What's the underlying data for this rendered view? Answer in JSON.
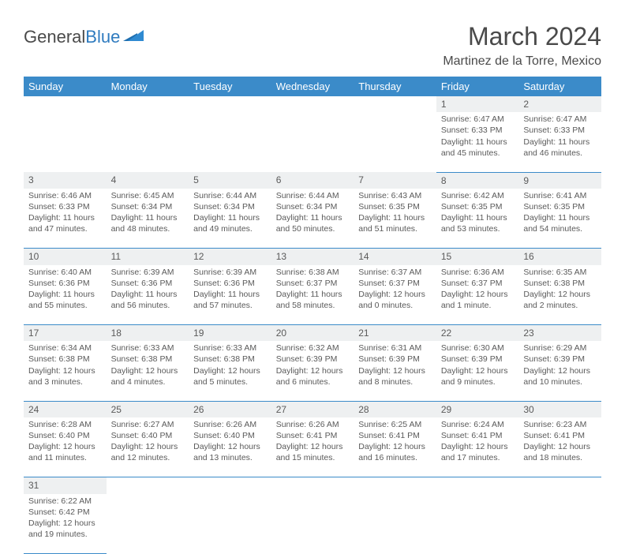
{
  "logo": {
    "part1": "General",
    "part2": "Blue"
  },
  "title": "March 2024",
  "location": "Martinez de la Torre, Mexico",
  "day_headers": [
    "Sunday",
    "Monday",
    "Tuesday",
    "Wednesday",
    "Thursday",
    "Friday",
    "Saturday"
  ],
  "colors": {
    "header_bg": "#3b8bc9",
    "header_fg": "#ffffff",
    "daynum_bg": "#eef0f1",
    "rule": "#3b8bc9",
    "logo_accent": "#2f7bbf"
  },
  "weeks": [
    [
      null,
      null,
      null,
      null,
      null,
      {
        "n": "1",
        "sr": "Sunrise: 6:47 AM",
        "ss": "Sunset: 6:33 PM",
        "dl": "Daylight: 11 hours and 45 minutes."
      },
      {
        "n": "2",
        "sr": "Sunrise: 6:47 AM",
        "ss": "Sunset: 6:33 PM",
        "dl": "Daylight: 11 hours and 46 minutes."
      }
    ],
    [
      {
        "n": "3",
        "sr": "Sunrise: 6:46 AM",
        "ss": "Sunset: 6:33 PM",
        "dl": "Daylight: 11 hours and 47 minutes."
      },
      {
        "n": "4",
        "sr": "Sunrise: 6:45 AM",
        "ss": "Sunset: 6:34 PM",
        "dl": "Daylight: 11 hours and 48 minutes."
      },
      {
        "n": "5",
        "sr": "Sunrise: 6:44 AM",
        "ss": "Sunset: 6:34 PM",
        "dl": "Daylight: 11 hours and 49 minutes."
      },
      {
        "n": "6",
        "sr": "Sunrise: 6:44 AM",
        "ss": "Sunset: 6:34 PM",
        "dl": "Daylight: 11 hours and 50 minutes."
      },
      {
        "n": "7",
        "sr": "Sunrise: 6:43 AM",
        "ss": "Sunset: 6:35 PM",
        "dl": "Daylight: 11 hours and 51 minutes."
      },
      {
        "n": "8",
        "sr": "Sunrise: 6:42 AM",
        "ss": "Sunset: 6:35 PM",
        "dl": "Daylight: 11 hours and 53 minutes."
      },
      {
        "n": "9",
        "sr": "Sunrise: 6:41 AM",
        "ss": "Sunset: 6:35 PM",
        "dl": "Daylight: 11 hours and 54 minutes."
      }
    ],
    [
      {
        "n": "10",
        "sr": "Sunrise: 6:40 AM",
        "ss": "Sunset: 6:36 PM",
        "dl": "Daylight: 11 hours and 55 minutes."
      },
      {
        "n": "11",
        "sr": "Sunrise: 6:39 AM",
        "ss": "Sunset: 6:36 PM",
        "dl": "Daylight: 11 hours and 56 minutes."
      },
      {
        "n": "12",
        "sr": "Sunrise: 6:39 AM",
        "ss": "Sunset: 6:36 PM",
        "dl": "Daylight: 11 hours and 57 minutes."
      },
      {
        "n": "13",
        "sr": "Sunrise: 6:38 AM",
        "ss": "Sunset: 6:37 PM",
        "dl": "Daylight: 11 hours and 58 minutes."
      },
      {
        "n": "14",
        "sr": "Sunrise: 6:37 AM",
        "ss": "Sunset: 6:37 PM",
        "dl": "Daylight: 12 hours and 0 minutes."
      },
      {
        "n": "15",
        "sr": "Sunrise: 6:36 AM",
        "ss": "Sunset: 6:37 PM",
        "dl": "Daylight: 12 hours and 1 minute."
      },
      {
        "n": "16",
        "sr": "Sunrise: 6:35 AM",
        "ss": "Sunset: 6:38 PM",
        "dl": "Daylight: 12 hours and 2 minutes."
      }
    ],
    [
      {
        "n": "17",
        "sr": "Sunrise: 6:34 AM",
        "ss": "Sunset: 6:38 PM",
        "dl": "Daylight: 12 hours and 3 minutes."
      },
      {
        "n": "18",
        "sr": "Sunrise: 6:33 AM",
        "ss": "Sunset: 6:38 PM",
        "dl": "Daylight: 12 hours and 4 minutes."
      },
      {
        "n": "19",
        "sr": "Sunrise: 6:33 AM",
        "ss": "Sunset: 6:38 PM",
        "dl": "Daylight: 12 hours and 5 minutes."
      },
      {
        "n": "20",
        "sr": "Sunrise: 6:32 AM",
        "ss": "Sunset: 6:39 PM",
        "dl": "Daylight: 12 hours and 6 minutes."
      },
      {
        "n": "21",
        "sr": "Sunrise: 6:31 AM",
        "ss": "Sunset: 6:39 PM",
        "dl": "Daylight: 12 hours and 8 minutes."
      },
      {
        "n": "22",
        "sr": "Sunrise: 6:30 AM",
        "ss": "Sunset: 6:39 PM",
        "dl": "Daylight: 12 hours and 9 minutes."
      },
      {
        "n": "23",
        "sr": "Sunrise: 6:29 AM",
        "ss": "Sunset: 6:39 PM",
        "dl": "Daylight: 12 hours and 10 minutes."
      }
    ],
    [
      {
        "n": "24",
        "sr": "Sunrise: 6:28 AM",
        "ss": "Sunset: 6:40 PM",
        "dl": "Daylight: 12 hours and 11 minutes."
      },
      {
        "n": "25",
        "sr": "Sunrise: 6:27 AM",
        "ss": "Sunset: 6:40 PM",
        "dl": "Daylight: 12 hours and 12 minutes."
      },
      {
        "n": "26",
        "sr": "Sunrise: 6:26 AM",
        "ss": "Sunset: 6:40 PM",
        "dl": "Daylight: 12 hours and 13 minutes."
      },
      {
        "n": "27",
        "sr": "Sunrise: 6:26 AM",
        "ss": "Sunset: 6:41 PM",
        "dl": "Daylight: 12 hours and 15 minutes."
      },
      {
        "n": "28",
        "sr": "Sunrise: 6:25 AM",
        "ss": "Sunset: 6:41 PM",
        "dl": "Daylight: 12 hours and 16 minutes."
      },
      {
        "n": "29",
        "sr": "Sunrise: 6:24 AM",
        "ss": "Sunset: 6:41 PM",
        "dl": "Daylight: 12 hours and 17 minutes."
      },
      {
        "n": "30",
        "sr": "Sunrise: 6:23 AM",
        "ss": "Sunset: 6:41 PM",
        "dl": "Daylight: 12 hours and 18 minutes."
      }
    ],
    [
      {
        "n": "31",
        "sr": "Sunrise: 6:22 AM",
        "ss": "Sunset: 6:42 PM",
        "dl": "Daylight: 12 hours and 19 minutes."
      },
      null,
      null,
      null,
      null,
      null,
      null
    ]
  ]
}
